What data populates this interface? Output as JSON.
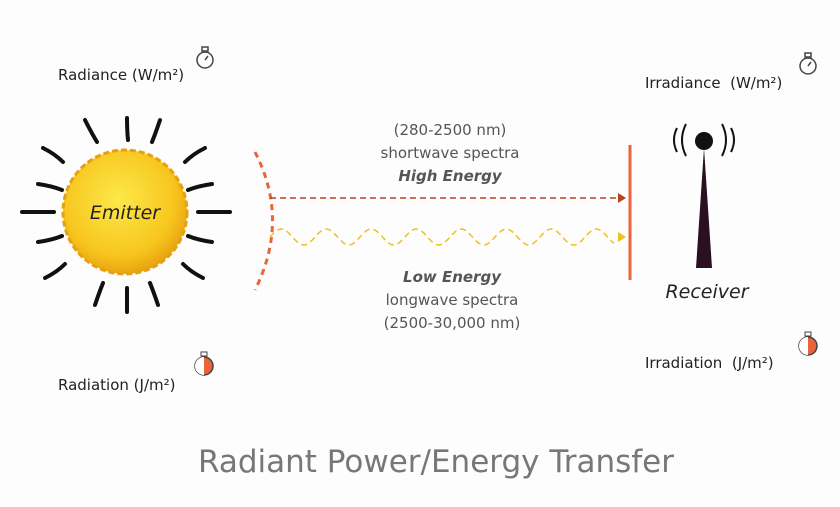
{
  "title": "Radiant Power/Energy Transfer",
  "emitter": {
    "label": "Emitter",
    "radiance": "Radiance (W/m²)",
    "radiation": "Radiation (J/m²)"
  },
  "receiver": {
    "label": "Receiver",
    "irradiance": "Irradiance  (W/m²)",
    "irradiation": "Irradiation  (J/m²)"
  },
  "shortwave": {
    "range": "(280-2500 nm)",
    "name": "shortwave spectra",
    "energy": "High Energy"
  },
  "longwave": {
    "energy": "Low Energy",
    "name": "longwave spectra",
    "range": "(2500-30,000 nm)"
  }
}
